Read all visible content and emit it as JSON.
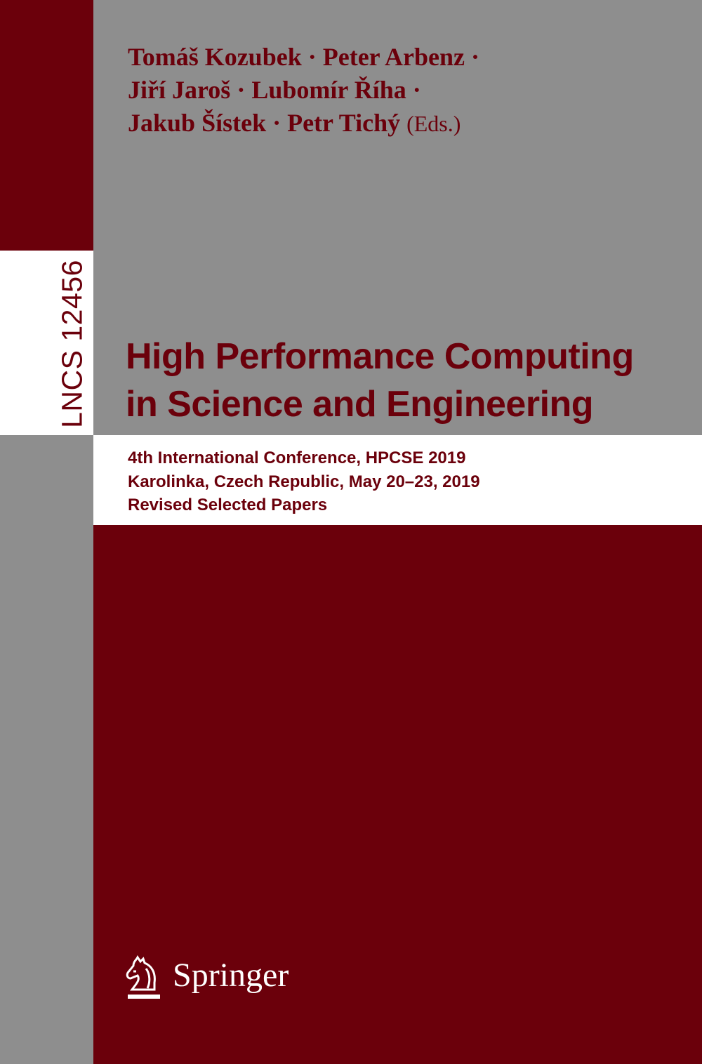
{
  "cover": {
    "editors": [
      "Tomáš Kozubek · Peter Arbenz ·",
      "Jiří Jaroš · Lubomír Říha ·",
      "Jakub Šístek · Petr Tichý"
    ],
    "editors_suffix": "(Eds.)",
    "series_label": "LNCS 12456",
    "title_lines": [
      "High Performance Computing",
      "in Science and Engineering"
    ],
    "subtitle_lines": [
      "4th International Conference, HPCSE 2019",
      "Karolinka, Czech Republic, May 20–23, 2019",
      "Revised Selected Papers"
    ],
    "publisher": "Springer",
    "publisher_logo_icon": "springer-horse-icon",
    "colors": {
      "brand_red": "#6b000b",
      "gray": "#8e8e8e",
      "white": "#ffffff"
    }
  }
}
